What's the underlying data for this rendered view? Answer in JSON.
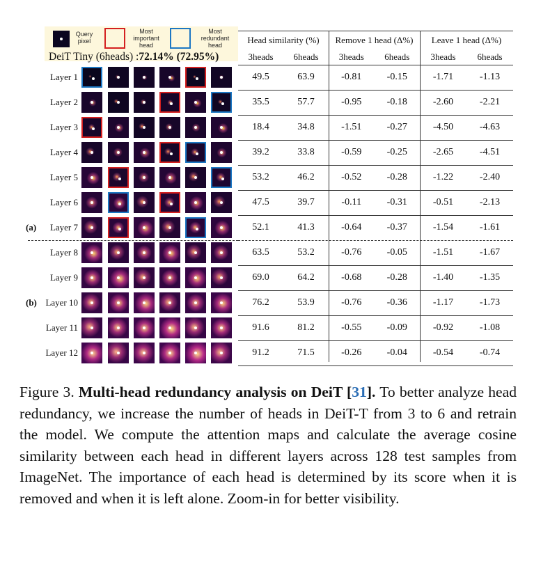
{
  "legend": {
    "query": "Query pixel",
    "important": "Most important head",
    "redundant": "Most redundant head"
  },
  "model": {
    "name": "DeiT Tiny (6heads) :",
    "acc": "72.14%",
    "acc2": "(72.95%)"
  },
  "sections": {
    "a": "(a)",
    "b": "(b)"
  },
  "table": {
    "headers": [
      "Head similarity (%)",
      "Remove 1 head (Δ%)",
      "Leave 1 head (Δ%)"
    ],
    "subheaders": [
      "3heads",
      "6heads",
      "3heads",
      "6heads",
      "3heads",
      "6heads"
    ],
    "rows": [
      {
        "label": "Layer 1",
        "values": [
          "49.5",
          "63.9",
          "-0.81",
          "-0.15",
          "-1.71",
          "-1.13"
        ]
      },
      {
        "label": "Layer 2",
        "values": [
          "35.5",
          "57.7",
          "-0.95",
          "-0.18",
          "-2.60",
          "-2.21"
        ]
      },
      {
        "label": "Layer 3",
        "values": [
          "18.4",
          "34.8",
          "-1.51",
          "-0.27",
          "-4.50",
          "-4.63"
        ]
      },
      {
        "label": "Layer 4",
        "values": [
          "39.2",
          "33.8",
          "-0.59",
          "-0.25",
          "-2.65",
          "-4.51"
        ]
      },
      {
        "label": "Layer 5",
        "values": [
          "53.2",
          "46.2",
          "-0.52",
          "-0.28",
          "-1.22",
          "-2.40"
        ]
      },
      {
        "label": "Layer 6",
        "values": [
          "47.5",
          "39.7",
          "-0.11",
          "-0.31",
          "-0.51",
          "-2.13"
        ]
      },
      {
        "label": "Layer 7",
        "values": [
          "52.1",
          "41.3",
          "-0.64",
          "-0.37",
          "-1.54",
          "-1.61"
        ]
      },
      {
        "label": "Layer 8",
        "values": [
          "63.5",
          "53.2",
          "-0.76",
          "-0.05",
          "-1.51",
          "-1.67"
        ]
      },
      {
        "label": "Layer 9",
        "values": [
          "69.0",
          "64.2",
          "-0.68",
          "-0.28",
          "-1.40",
          "-1.35"
        ]
      },
      {
        "label": "Layer 10",
        "values": [
          "76.2",
          "53.9",
          "-0.76",
          "-0.36",
          "-1.17",
          "-1.73"
        ]
      },
      {
        "label": "Layer 11",
        "values": [
          "91.6",
          "81.2",
          "-0.55",
          "-0.09",
          "-0.92",
          "-1.08"
        ]
      },
      {
        "label": "Layer 12",
        "values": [
          "91.2",
          "71.5",
          "-0.26",
          "-0.04",
          "-0.54",
          "-0.74"
        ]
      }
    ]
  },
  "heads": {
    "important": [
      5,
      4,
      1,
      4,
      2,
      4,
      2,
      0,
      0,
      0,
      0,
      0
    ],
    "redundant": [
      1,
      6,
      0,
      5,
      6,
      2,
      5,
      0,
      0,
      0,
      0,
      0
    ]
  },
  "caption": {
    "fig": "Figure 3.",
    "title": "Multi-head redundancy analysis on DeiT [",
    "ref": "31",
    "title_end": "].",
    "body": " To better analyze head redundancy, we increase the number of heads in DeiT-T from 3 to 6 and retrain the model. We compute the attention maps and calculate the average cosine similarity between each head in different layers across 128 test samples from ImageNet. The importance of each head is determined by its score when it is removed and when it is left alone. Zoom-in for better visibility."
  }
}
